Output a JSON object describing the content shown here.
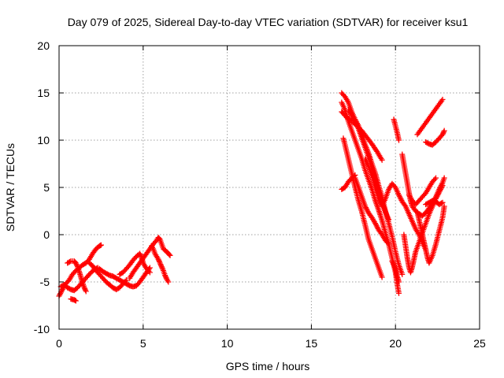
{
  "chart_data": {
    "type": "scatter",
    "title": "Day 079 of 2025, Sidereal Day-to-day VTEC variation (SDTVAR) for receiver ksu1",
    "xlabel": "GPS time / hours",
    "ylabel": "SDTVAR / TECUs",
    "xlim": [
      0,
      25
    ],
    "ylim": [
      -10,
      20
    ],
    "xticks": [
      0,
      5,
      10,
      15,
      20,
      25
    ],
    "yticks": [
      -10,
      -5,
      0,
      5,
      10,
      15,
      20
    ],
    "grid": true,
    "marker": "+",
    "color": "#ff0000",
    "segments": [
      {
        "name": "early-1",
        "points": [
          [
            0,
            -6.5
          ],
          [
            0.2,
            -5.8
          ],
          [
            0.4,
            -5.2
          ],
          [
            0.6,
            -4.8
          ],
          [
            0.8,
            -4.2
          ],
          [
            1.0,
            -3.8
          ],
          [
            1.2,
            -3.5
          ],
          [
            1.4,
            -3.2
          ],
          [
            1.6,
            -3.0
          ],
          [
            1.8,
            -2.6
          ],
          [
            2.0,
            -2.0
          ],
          [
            2.2,
            -1.5
          ],
          [
            2.4,
            -1.2
          ],
          [
            2.5,
            -1.1
          ]
        ]
      },
      {
        "name": "early-2",
        "points": [
          [
            0.1,
            -5.5
          ],
          [
            0.3,
            -5.3
          ],
          [
            0.5,
            -5.6
          ],
          [
            0.7,
            -5.8
          ],
          [
            0.9,
            -5.9
          ],
          [
            1.1,
            -5.6
          ],
          [
            1.3,
            -5.2
          ],
          [
            1.5,
            -4.8
          ],
          [
            1.7,
            -4.4
          ],
          [
            1.9,
            -4.0
          ],
          [
            2.1,
            -3.7
          ],
          [
            2.3,
            -3.5
          ]
        ]
      },
      {
        "name": "early-3",
        "points": [
          [
            0.5,
            -3.0
          ],
          [
            0.7,
            -2.8
          ],
          [
            0.9,
            -2.8
          ],
          [
            1.0,
            -3.0
          ],
          [
            1.1,
            -3.4
          ],
          [
            1.2,
            -3.9
          ],
          [
            1.3,
            -4.5
          ],
          [
            1.4,
            -5.1
          ],
          [
            1.5,
            -5.6
          ],
          [
            1.6,
            -6.0
          ]
        ]
      },
      {
        "name": "early-4",
        "points": [
          [
            0.7,
            -6.8
          ],
          [
            0.9,
            -6.9
          ],
          [
            1.0,
            -7.0
          ]
        ]
      },
      {
        "name": "early-5",
        "points": [
          [
            1.8,
            -3.0
          ],
          [
            2.0,
            -3.3
          ],
          [
            2.2,
            -3.8
          ],
          [
            2.4,
            -4.2
          ],
          [
            2.6,
            -4.6
          ],
          [
            2.8,
            -5.0
          ],
          [
            3.0,
            -5.3
          ],
          [
            3.2,
            -5.6
          ],
          [
            3.4,
            -5.8
          ],
          [
            3.6,
            -5.6
          ],
          [
            3.8,
            -5.2
          ],
          [
            4.0,
            -4.8
          ]
        ]
      },
      {
        "name": "early-6",
        "points": [
          [
            2.4,
            -3.6
          ],
          [
            2.6,
            -3.9
          ],
          [
            2.8,
            -4.1
          ],
          [
            3.0,
            -4.3
          ],
          [
            3.2,
            -4.4
          ],
          [
            3.4,
            -4.6
          ],
          [
            3.6,
            -4.8
          ],
          [
            3.8,
            -5.0
          ],
          [
            4.0,
            -5.2
          ],
          [
            4.2,
            -5.4
          ],
          [
            4.4,
            -5.5
          ],
          [
            4.6,
            -5.4
          ],
          [
            4.8,
            -5.0
          ],
          [
            5.0,
            -4.5
          ],
          [
            5.2,
            -4.0
          ],
          [
            5.4,
            -3.5
          ]
        ]
      },
      {
        "name": "early-7",
        "points": [
          [
            3.6,
            -4.2
          ],
          [
            3.8,
            -4.0
          ],
          [
            4.0,
            -3.6
          ],
          [
            4.2,
            -3.2
          ],
          [
            4.4,
            -2.7
          ],
          [
            4.6,
            -2.3
          ],
          [
            4.8,
            -2.0
          ],
          [
            4.9,
            -2.4
          ],
          [
            5.0,
            -3.0
          ],
          [
            5.2,
            -3.6
          ],
          [
            5.4,
            -4.0
          ]
        ]
      },
      {
        "name": "early-8",
        "points": [
          [
            4.2,
            -4.6
          ],
          [
            4.4,
            -4.0
          ],
          [
            4.6,
            -3.5
          ],
          [
            4.8,
            -3.0
          ],
          [
            5.0,
            -2.5
          ],
          [
            5.2,
            -2.0
          ],
          [
            5.4,
            -1.5
          ],
          [
            5.6,
            -1.0
          ],
          [
            5.8,
            -0.6
          ],
          [
            5.9,
            -0.3
          ],
          [
            6.0,
            -0.5
          ],
          [
            6.1,
            -1.0
          ],
          [
            6.2,
            -1.5
          ],
          [
            6.4,
            -1.8
          ],
          [
            6.5,
            -2.0
          ],
          [
            6.6,
            -2.2
          ]
        ]
      },
      {
        "name": "early-9",
        "points": [
          [
            5.5,
            -1.2
          ],
          [
            5.6,
            -1.5
          ],
          [
            5.7,
            -2.0
          ],
          [
            5.8,
            -2.3
          ],
          [
            5.9,
            -2.6
          ],
          [
            6.0,
            -3.0
          ],
          [
            6.1,
            -3.4
          ],
          [
            6.2,
            -3.8
          ],
          [
            6.3,
            -4.3
          ],
          [
            6.4,
            -4.7
          ],
          [
            6.5,
            -5.0
          ]
        ]
      },
      {
        "name": "late-1",
        "points": [
          [
            16.8,
            15.0
          ],
          [
            17.0,
            14.6
          ],
          [
            17.2,
            14.0
          ],
          [
            17.4,
            13.0
          ],
          [
            17.6,
            12.2
          ],
          [
            17.8,
            11.5
          ],
          [
            18.0,
            10.5
          ],
          [
            18.2,
            9.5
          ],
          [
            18.4,
            8.6
          ],
          [
            18.6,
            7.5
          ],
          [
            18.8,
            6.5
          ],
          [
            19.0,
            5.2
          ],
          [
            19.2,
            4.0
          ],
          [
            19.4,
            2.5
          ],
          [
            19.6,
            1.2
          ],
          [
            19.8,
            -0.2
          ],
          [
            20.0,
            -1.8
          ],
          [
            20.2,
            -3.2
          ],
          [
            20.4,
            -4.2
          ]
        ]
      },
      {
        "name": "late-2",
        "points": [
          [
            16.8,
            14.0
          ],
          [
            17.0,
            13.2
          ],
          [
            17.2,
            12.0
          ],
          [
            17.4,
            11.0
          ],
          [
            17.6,
            10.0
          ],
          [
            17.8,
            9.0
          ],
          [
            18.0,
            8.0
          ],
          [
            18.2,
            6.8
          ],
          [
            18.4,
            5.8
          ],
          [
            18.6,
            4.8
          ],
          [
            18.8,
            3.6
          ],
          [
            19.0,
            2.6
          ],
          [
            19.2,
            1.5
          ],
          [
            19.4,
            0.2
          ],
          [
            19.6,
            -1.0
          ],
          [
            19.8,
            -2.5
          ],
          [
            20.0,
            -4.0
          ],
          [
            20.1,
            -5.2
          ],
          [
            20.2,
            -6.2
          ]
        ]
      },
      {
        "name": "late-3",
        "points": [
          [
            16.9,
            10.2
          ],
          [
            17.0,
            9.5
          ],
          [
            17.2,
            8.0
          ],
          [
            17.4,
            6.5
          ],
          [
            17.6,
            5.0
          ],
          [
            17.8,
            3.6
          ],
          [
            18.0,
            2.4
          ],
          [
            18.2,
            1.0
          ],
          [
            18.4,
            -0.5
          ],
          [
            18.6,
            -1.5
          ],
          [
            18.8,
            -2.5
          ],
          [
            19.0,
            -3.5
          ],
          [
            19.2,
            -4.5
          ]
        ]
      },
      {
        "name": "late-4",
        "points": [
          [
            16.8,
            13.0
          ],
          [
            17.1,
            12.4
          ],
          [
            17.4,
            12.0
          ],
          [
            17.7,
            11.5
          ],
          [
            18.0,
            11.0
          ],
          [
            18.3,
            10.3
          ],
          [
            18.6,
            9.6
          ],
          [
            18.9,
            8.8
          ],
          [
            19.2,
            7.9
          ]
        ]
      },
      {
        "name": "late-5",
        "points": [
          [
            16.8,
            4.8
          ],
          [
            17.0,
            5.0
          ],
          [
            17.2,
            5.6
          ],
          [
            17.4,
            6.0
          ],
          [
            17.6,
            6.3
          ]
        ]
      },
      {
        "name": "late-6",
        "points": [
          [
            17.6,
            6.0
          ],
          [
            17.8,
            5.0
          ],
          [
            18.0,
            4.0
          ],
          [
            18.2,
            3.0
          ],
          [
            18.4,
            2.3
          ],
          [
            18.6,
            1.8
          ],
          [
            18.8,
            1.2
          ],
          [
            19.0,
            0.5
          ],
          [
            19.2,
            0.0
          ],
          [
            19.4,
            -0.6
          ],
          [
            19.6,
            -1.0
          ]
        ]
      },
      {
        "name": "late-7",
        "points": [
          [
            18.2,
            8.0
          ],
          [
            18.4,
            7.2
          ],
          [
            18.6,
            6.2
          ],
          [
            18.8,
            5.0
          ],
          [
            19.0,
            3.8
          ],
          [
            19.2,
            3.0
          ],
          [
            19.4,
            3.8
          ],
          [
            19.6,
            4.8
          ],
          [
            19.8,
            5.4
          ],
          [
            20.0,
            5.0
          ],
          [
            20.2,
            4.2
          ],
          [
            20.4,
            3.5
          ],
          [
            20.6,
            3.0
          ],
          [
            20.8,
            2.2
          ],
          [
            21.0,
            1.4
          ],
          [
            21.2,
            0.6
          ],
          [
            21.4,
            0.0
          ],
          [
            21.6,
            -0.8
          ],
          [
            21.8,
            -1.6
          ]
        ]
      },
      {
        "name": "late-8",
        "points": [
          [
            19.9,
            12.2
          ],
          [
            20.0,
            11.5
          ],
          [
            20.1,
            10.8
          ],
          [
            20.2,
            10.0
          ]
        ]
      },
      {
        "name": "late-9",
        "points": [
          [
            20.4,
            8.5
          ],
          [
            20.5,
            7.5
          ],
          [
            20.6,
            6.5
          ],
          [
            20.7,
            5.5
          ],
          [
            20.8,
            4.5
          ],
          [
            20.9,
            3.6
          ],
          [
            21.0,
            3.0
          ],
          [
            21.2,
            2.5
          ],
          [
            21.4,
            2.2
          ],
          [
            21.6,
            2.0
          ],
          [
            21.8,
            2.3
          ],
          [
            22.0,
            2.8
          ],
          [
            22.2,
            3.4
          ],
          [
            22.4,
            4.0
          ],
          [
            22.6,
            4.8
          ],
          [
            22.8,
            5.5
          ],
          [
            22.9,
            6.0
          ]
        ]
      },
      {
        "name": "late-10",
        "points": [
          [
            20.5,
            0.0
          ],
          [
            20.6,
            -1.2
          ],
          [
            20.7,
            -2.4
          ],
          [
            20.8,
            -3.4
          ],
          [
            20.9,
            -4.0
          ],
          [
            21.0,
            -3.4
          ],
          [
            21.1,
            -2.6
          ],
          [
            21.2,
            -1.8
          ],
          [
            21.4,
            -0.8
          ],
          [
            21.6,
            0.2
          ],
          [
            21.8,
            1.2
          ],
          [
            22.0,
            2.2
          ],
          [
            22.2,
            3.0
          ],
          [
            22.4,
            3.8
          ],
          [
            22.6,
            4.5
          ],
          [
            22.8,
            5.2
          ]
        ]
      },
      {
        "name": "late-11",
        "points": [
          [
            21.3,
            2.4
          ],
          [
            21.4,
            1.6
          ],
          [
            21.5,
            0.8
          ],
          [
            21.6,
            0.0
          ],
          [
            21.7,
            -0.8
          ],
          [
            21.8,
            -1.6
          ],
          [
            21.9,
            -2.4
          ],
          [
            22.0,
            -3.0
          ],
          [
            22.2,
            -2.2
          ],
          [
            22.4,
            -1.0
          ],
          [
            22.6,
            0.4
          ],
          [
            22.8,
            1.8
          ],
          [
            22.9,
            3.0
          ]
        ]
      },
      {
        "name": "late-12",
        "points": [
          [
            21.8,
            3.2
          ],
          [
            22.0,
            3.4
          ],
          [
            22.2,
            3.6
          ],
          [
            22.4,
            3.5
          ],
          [
            22.6,
            3.2
          ],
          [
            22.8,
            3.4
          ]
        ]
      },
      {
        "name": "late-13",
        "points": [
          [
            21.8,
            9.8
          ],
          [
            22.0,
            9.6
          ],
          [
            22.2,
            9.5
          ],
          [
            22.4,
            9.8
          ],
          [
            22.6,
            10.2
          ],
          [
            22.8,
            10.6
          ],
          [
            22.9,
            11.0
          ]
        ]
      },
      {
        "name": "late-14",
        "points": [
          [
            21.3,
            10.6
          ],
          [
            22.8,
            14.3
          ]
        ]
      },
      {
        "name": "late-15",
        "points": [
          [
            19.8,
            -2.8
          ],
          [
            20.0,
            -3.6
          ],
          [
            20.1,
            -4.4
          ],
          [
            20.2,
            -5.0
          ]
        ]
      },
      {
        "name": "late-16",
        "points": [
          [
            17.2,
            13.2
          ],
          [
            17.4,
            12.6
          ],
          [
            17.6,
            12.0
          ],
          [
            17.8,
            11.2
          ],
          [
            18.0,
            10.2
          ],
          [
            18.2,
            9.2
          ],
          [
            18.4,
            8.2
          ],
          [
            18.6,
            7.0
          ],
          [
            18.8,
            5.8
          ],
          [
            19.0,
            4.6
          ],
          [
            19.2,
            3.4
          ],
          [
            19.4,
            2.4
          ],
          [
            19.6,
            1.6
          ]
        ]
      },
      {
        "name": "late-17",
        "points": [
          [
            20.8,
            4.2
          ],
          [
            21.0,
            3.6
          ],
          [
            21.2,
            3.2
          ],
          [
            21.4,
            3.6
          ],
          [
            21.6,
            4.0
          ],
          [
            21.8,
            4.4
          ],
          [
            22.0,
            5.0
          ],
          [
            22.2,
            5.6
          ],
          [
            22.4,
            6.0
          ]
        ]
      }
    ]
  }
}
